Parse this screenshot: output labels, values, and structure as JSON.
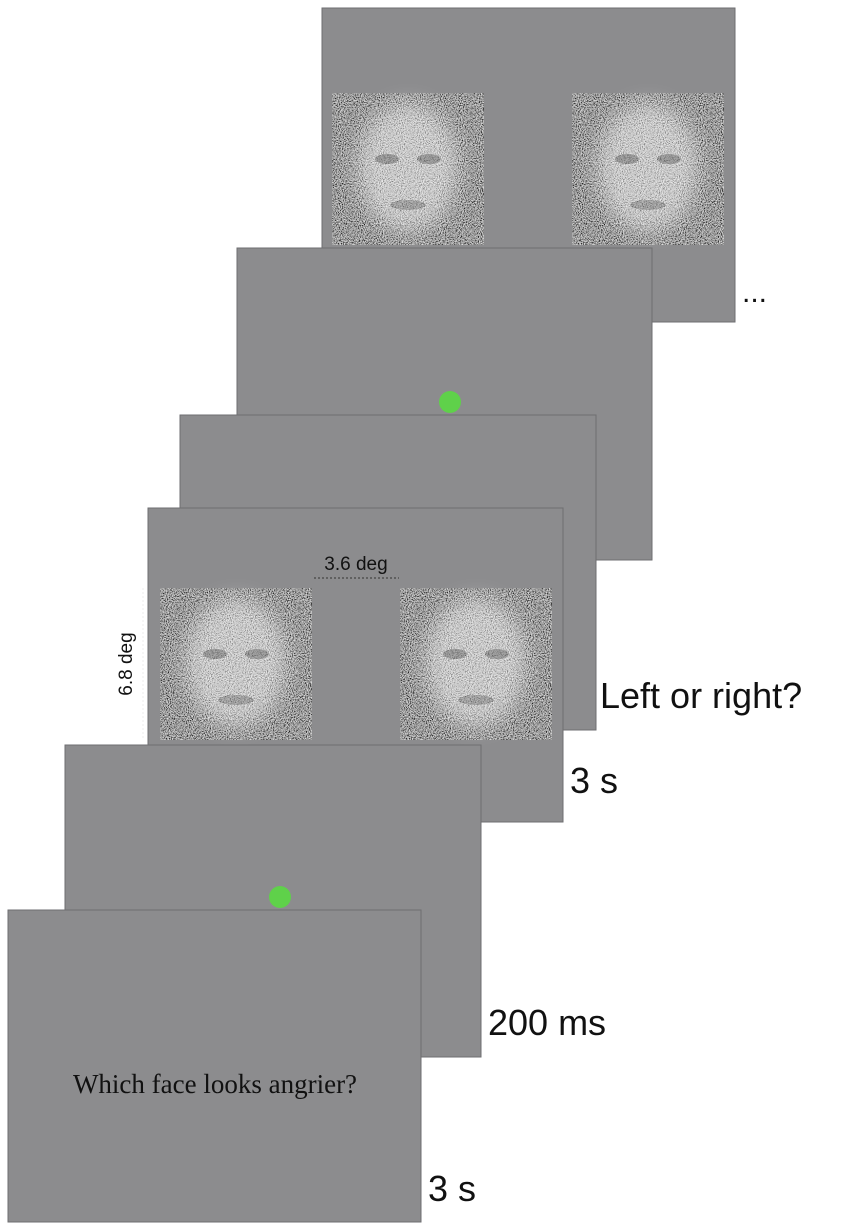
{
  "ellipsis": "...",
  "dimensions": {
    "horizontal": "3.6 deg",
    "vertical": "6.8 deg"
  },
  "question": "Which face looks angrier?",
  "timeline": [
    {
      "label": "Left or right?"
    },
    {
      "label": "3 s"
    },
    {
      "label": "200 ms"
    },
    {
      "label": "3 s"
    }
  ]
}
